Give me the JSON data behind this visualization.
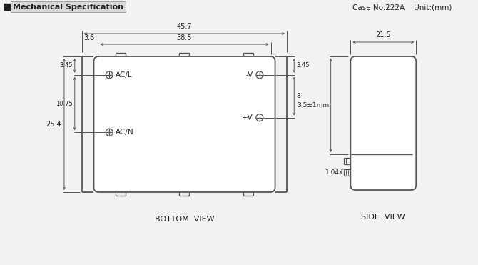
{
  "title": "Mechanical Specification",
  "case_info": "Case No.222A    Unit:(mm)",
  "bottom_view_label": "BOTTOM  VIEW",
  "side_view_label": "SIDE  VIEW",
  "bg_color": "#f2f2f2",
  "line_color": "#555555",
  "dim_color": "#555555",
  "text_color": "#222222",
  "dims": {
    "total_width": "45.7",
    "inner_width": "38.5",
    "left_offset": "3.6",
    "top_margin": "3.45",
    "pin_spacing": "10.75",
    "total_height": "25.4",
    "right_top_margin": "3.45",
    "right_pin_spacing": "8",
    "side_width": "21.5",
    "side_top": "3.5±1mm",
    "side_bottom": "1.04"
  },
  "pins": {
    "acl_label": "AC/L",
    "acn_label": "AC/N",
    "neg_v_label": "-V",
    "pos_v_label": "+V"
  }
}
